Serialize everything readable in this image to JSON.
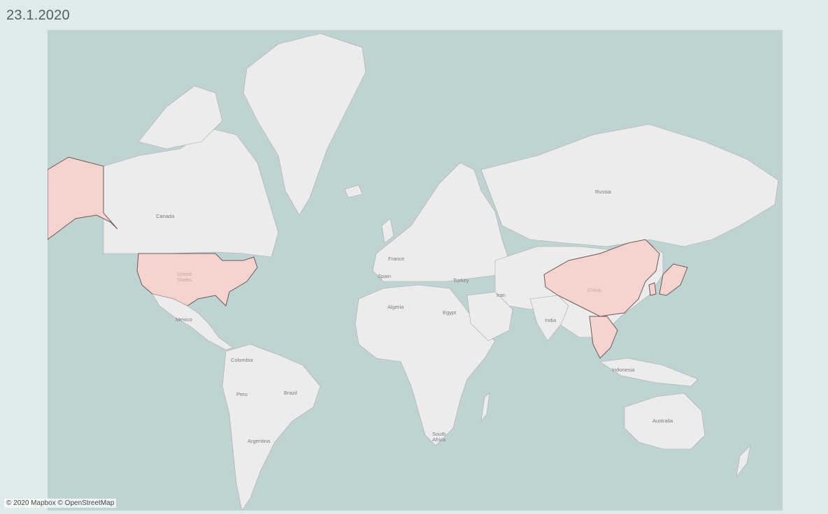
{
  "title": "23.1.2020",
  "attribution": "© 2020 Mapbox © OpenStreetMap",
  "colors": {
    "water": "#bfd3d2",
    "land": "#ececec",
    "highlight": "#f6d3cf",
    "page": "#deebea"
  },
  "highlighted_countries": [
    "United States",
    "China",
    "Japan",
    "South Korea",
    "Thailand",
    "Vietnam"
  ],
  "labels": {
    "canada": "Canada",
    "us": "United\nStates",
    "mexico": "Mexico",
    "colombia": "Colombia",
    "brazil": "Brazil",
    "peru": "Peru",
    "argentina": "Argentina",
    "france": "France",
    "spain": "Spain",
    "algeria": "Algeria",
    "egypt": "Egypt",
    "turkey": "Turkey",
    "iran": "Iran",
    "russia": "Russia",
    "china": "China",
    "india": "India",
    "indonesia": "Indonesia",
    "australia": "Australia",
    "south_africa": "South\nAfrica"
  }
}
